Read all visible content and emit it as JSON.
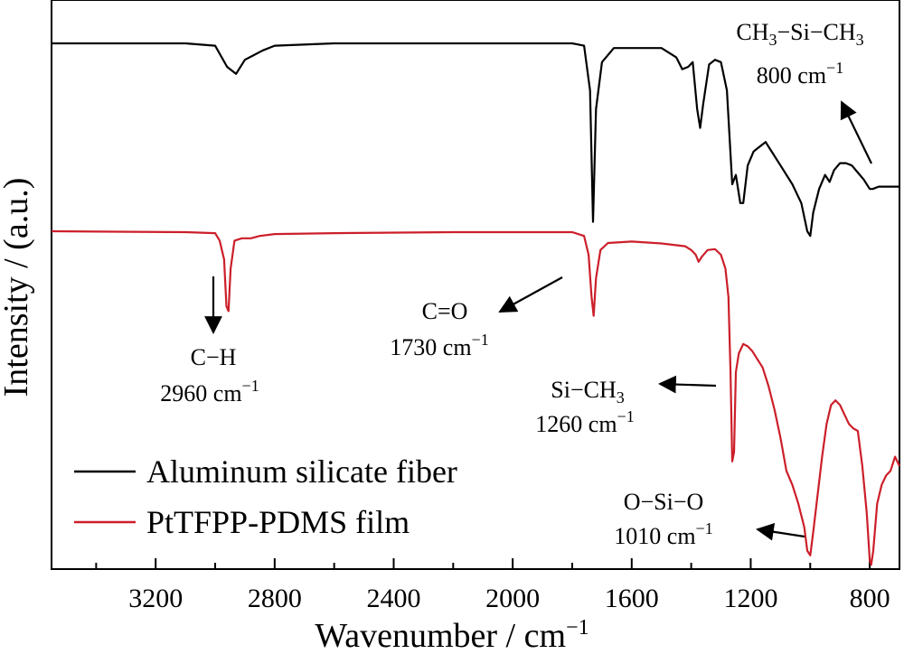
{
  "chart_data": {
    "type": "line",
    "xlabel": "Wavenumber / cm",
    "xlabel_sup": "−1",
    "ylabel": "Intensity / (a.u.)",
    "xlim": [
      3550,
      700
    ],
    "x_reversed": true,
    "x_ticks": [
      3200,
      2800,
      2400,
      2000,
      1600,
      1200,
      800
    ],
    "y_ticks": "none",
    "legend_position": "bottom-left",
    "series": [
      {
        "name": "Aluminum silicate fiber",
        "color": "#000000",
        "points": [
          [
            3550,
            1.0
          ],
          [
            3100,
            1.0
          ],
          [
            3000,
            0.995
          ],
          [
            2960,
            0.95
          ],
          [
            2930,
            0.935
          ],
          [
            2900,
            0.965
          ],
          [
            2870,
            0.975
          ],
          [
            2840,
            0.985
          ],
          [
            2800,
            0.995
          ],
          [
            2600,
            1.0
          ],
          [
            2000,
            1.0
          ],
          [
            1800,
            1.0
          ],
          [
            1760,
            0.995
          ],
          [
            1740,
            0.9
          ],
          [
            1730,
            0.62
          ],
          [
            1720,
            0.86
          ],
          [
            1700,
            0.96
          ],
          [
            1660,
            0.99
          ],
          [
            1500,
            0.99
          ],
          [
            1450,
            0.97
          ],
          [
            1430,
            0.945
          ],
          [
            1410,
            0.95
          ],
          [
            1395,
            0.96
          ],
          [
            1380,
            0.86
          ],
          [
            1370,
            0.82
          ],
          [
            1360,
            0.87
          ],
          [
            1340,
            0.955
          ],
          [
            1320,
            0.965
          ],
          [
            1300,
            0.96
          ],
          [
            1280,
            0.9
          ],
          [
            1262,
            0.7
          ],
          [
            1250,
            0.72
          ],
          [
            1235,
            0.66
          ],
          [
            1225,
            0.66
          ],
          [
            1210,
            0.74
          ],
          [
            1190,
            0.77
          ],
          [
            1170,
            0.78
          ],
          [
            1150,
            0.79
          ],
          [
            1130,
            0.77
          ],
          [
            1100,
            0.74
          ],
          [
            1060,
            0.7
          ],
          [
            1030,
            0.66
          ],
          [
            1010,
            0.6
          ],
          [
            1000,
            0.59
          ],
          [
            990,
            0.64
          ],
          [
            970,
            0.69
          ],
          [
            950,
            0.72
          ],
          [
            935,
            0.705
          ],
          [
            920,
            0.73
          ],
          [
            900,
            0.745
          ],
          [
            880,
            0.745
          ],
          [
            860,
            0.74
          ],
          [
            840,
            0.725
          ],
          [
            820,
            0.71
          ],
          [
            800,
            0.69
          ],
          [
            790,
            0.69
          ],
          [
            770,
            0.695
          ],
          [
            740,
            0.695
          ],
          [
            700,
            0.695
          ]
        ]
      },
      {
        "name": "PtTFPP-PDMS film",
        "color": "#cc1f2a",
        "points": [
          [
            3550,
            0.6
          ],
          [
            3100,
            0.598
          ],
          [
            3000,
            0.596
          ],
          [
            2985,
            0.58
          ],
          [
            2970,
            0.54
          ],
          [
            2962,
            0.44
          ],
          [
            2955,
            0.43
          ],
          [
            2948,
            0.52
          ],
          [
            2935,
            0.58
          ],
          [
            2910,
            0.585
          ],
          [
            2880,
            0.585
          ],
          [
            2850,
            0.59
          ],
          [
            2800,
            0.594
          ],
          [
            2600,
            0.596
          ],
          [
            2200,
            0.598
          ],
          [
            2000,
            0.598
          ],
          [
            1800,
            0.598
          ],
          [
            1760,
            0.59
          ],
          [
            1745,
            0.55
          ],
          [
            1735,
            0.46
          ],
          [
            1728,
            0.42
          ],
          [
            1720,
            0.5
          ],
          [
            1705,
            0.56
          ],
          [
            1680,
            0.575
          ],
          [
            1600,
            0.578
          ],
          [
            1500,
            0.574
          ],
          [
            1420,
            0.568
          ],
          [
            1400,
            0.56
          ],
          [
            1385,
            0.55
          ],
          [
            1375,
            0.535
          ],
          [
            1365,
            0.545
          ],
          [
            1345,
            0.56
          ],
          [
            1320,
            0.562
          ],
          [
            1300,
            0.55
          ],
          [
            1285,
            0.52
          ],
          [
            1275,
            0.46
          ],
          [
            1268,
            0.3
          ],
          [
            1262,
            0.11
          ],
          [
            1256,
            0.13
          ],
          [
            1250,
            0.3
          ],
          [
            1240,
            0.34
          ],
          [
            1225,
            0.36
          ],
          [
            1210,
            0.355
          ],
          [
            1195,
            0.345
          ],
          [
            1180,
            0.33
          ],
          [
            1160,
            0.31
          ],
          [
            1140,
            0.27
          ],
          [
            1120,
            0.22
          ],
          [
            1100,
            0.16
          ],
          [
            1080,
            0.09
          ],
          [
            1060,
            0.06
          ],
          [
            1040,
            0.02
          ],
          [
            1020,
            -0.03
          ],
          [
            1010,
            -0.08
          ],
          [
            1000,
            -0.09
          ],
          [
            990,
            -0.04
          ],
          [
            975,
            0.04
          ],
          [
            960,
            0.12
          ],
          [
            945,
            0.19
          ],
          [
            930,
            0.23
          ],
          [
            915,
            0.24
          ],
          [
            900,
            0.23
          ],
          [
            885,
            0.21
          ],
          [
            870,
            0.19
          ],
          [
            855,
            0.18
          ],
          [
            840,
            0.175
          ],
          [
            825,
            0.1
          ],
          [
            810,
            0.0
          ],
          [
            800,
            -0.1
          ],
          [
            795,
            -0.11
          ],
          [
            788,
            -0.08
          ],
          [
            775,
            0.02
          ],
          [
            760,
            0.06
          ],
          [
            745,
            0.08
          ],
          [
            730,
            0.09
          ],
          [
            715,
            0.12
          ],
          [
            700,
            0.1
          ]
        ]
      }
    ],
    "annotations": [
      {
        "line1": "C−H",
        "line2": "2960 cm",
        "sup2": "−1"
      },
      {
        "line1": "C=O",
        "line2": "1730 cm",
        "sup2": "−1"
      },
      {
        "line1": "Si−CH",
        "sub1": "3",
        "line2": "1260 cm",
        "sup2": "−1"
      },
      {
        "line1": "O−Si−O",
        "line2": "1010 cm",
        "sup2": "−1"
      },
      {
        "line1": "CH",
        "sub1": "3",
        "line1b": "−Si−CH",
        "sub1b": "3",
        "line2": "800 cm",
        "sup2": "−1"
      }
    ]
  }
}
